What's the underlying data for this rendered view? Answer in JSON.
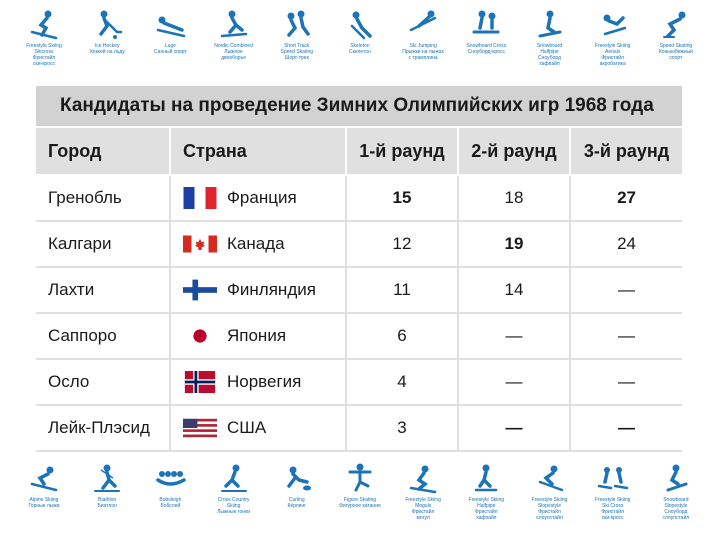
{
  "sports_top": [
    {
      "icon": "freestyle-skiing-pictogram-icon",
      "caption": "Freestyle Skiing\nSkicross\nФристайл\nски-кросс"
    },
    {
      "icon": "ice-hockey-pictogram-icon",
      "caption": "Ice Hockey\nХоккей на льду"
    },
    {
      "icon": "luge-pictogram-icon",
      "caption": "Luge\nСанный спорт"
    },
    {
      "icon": "nordic-combined-pictogram-icon",
      "caption": "Nordic Combined\nЛыжное\nдвоеборье"
    },
    {
      "icon": "short-track-pictogram-icon",
      "caption": "Short Track\nSpeed Skating\nШорт-трек"
    },
    {
      "icon": "skeleton-pictogram-icon",
      "caption": "Skeleton\nСкелетон"
    },
    {
      "icon": "ski-jumping-pictogram-icon",
      "caption": "Ski Jumping\nПрыжки на лыжах\nс трамплина"
    },
    {
      "icon": "snowboard-cross-pictogram-icon",
      "caption": "Snowboard Cross\nСноуборд-кросс"
    },
    {
      "icon": "snowboard-halfpipe-pictogram-icon",
      "caption": "Snowboard\nHalfpipe\nСноуборд\nхафпайп"
    },
    {
      "icon": "freestyle-aerials-pictogram-icon",
      "caption": "Freestyle Skiing\nAerials\nФристайл\nакробатика"
    },
    {
      "icon": "speed-skating-pictogram-icon",
      "caption": "Speed Skating\nКонькобежный\nспорт"
    }
  ],
  "sports_bottom": [
    {
      "icon": "alpine-skiing-pictogram-icon",
      "caption": "Alpine Skiing\nГорные лыжи"
    },
    {
      "icon": "biathlon-pictogram-icon",
      "caption": "Biathlon\nБиатлон"
    },
    {
      "icon": "bobsleigh-pictogram-icon",
      "caption": "Bobsleigh\nБобслей"
    },
    {
      "icon": "cross-country-pictogram-icon",
      "caption": "Cross Country\nSkiing\nЛыжные гонки"
    },
    {
      "icon": "curling-pictogram-icon",
      "caption": "Curling\nКёрлинг"
    },
    {
      "icon": "figure-skating-pictogram-icon",
      "caption": "Figure Skating\nФигурное катание"
    },
    {
      "icon": "freestyle-moguls-pictogram-icon",
      "caption": "Freestyle Skiing\nMoguls\nФристайл\nмогул"
    },
    {
      "icon": "freestyle-halfpipe-pictogram-icon",
      "caption": "Freestyle Skiing\nHalfpipe\nФристайл\nхафпайп"
    },
    {
      "icon": "freestyle-slopestyle-pictogram-icon",
      "caption": "Freestyle Skiing\nSlopestyle\nФристайл\nслоупстайл"
    },
    {
      "icon": "freestyle-skicross-pictogram-icon",
      "caption": "Freestyle Skiing\nSki Cross\nФристайл\nски-кросс"
    },
    {
      "icon": "snowboard-slopestyle-pictogram-icon",
      "caption": "Snowboard\nSlopestyle\nСноуборд\nслоупстайл"
    }
  ],
  "table": {
    "title": "Кандидаты на проведение Зимних Олимпийских игр 1968 года",
    "headers": [
      "Город",
      "Страна",
      "1-й раунд",
      "2-й раунд",
      "3-й раунд"
    ],
    "rows": [
      {
        "city": "Гренобль",
        "country": "Франция",
        "flag": "france-flag-icon",
        "r1": "15",
        "r2": "18",
        "r3": "27"
      },
      {
        "city": "Калгари",
        "country": "Канада",
        "flag": "canada-flag-icon",
        "r1": "12",
        "r2": "19",
        "r3": "24"
      },
      {
        "city": "Лахти",
        "country": "Финляндия",
        "flag": "finland-flag-icon",
        "r1": "11",
        "r2": "14",
        "r3": "—"
      },
      {
        "city": "Саппоро",
        "country": "Япония",
        "flag": "japan-flag-icon",
        "r1": "6",
        "r2": "—",
        "r3": "—"
      },
      {
        "city": "Осло",
        "country": "Норвегия",
        "flag": "norway-flag-icon",
        "r1": "4",
        "r2": "—",
        "r3": "—"
      },
      {
        "city": "Лейк-Плэсид",
        "country": "США",
        "flag": "usa-flag-icon",
        "r1": "3",
        "r2": "—",
        "r3": "—"
      }
    ]
  },
  "colors": {
    "pictogram": "#1c73b8",
    "title_bg": "#d2d2d2",
    "header_bg": "#e0e0e0",
    "grid": "#e0e0e0"
  }
}
